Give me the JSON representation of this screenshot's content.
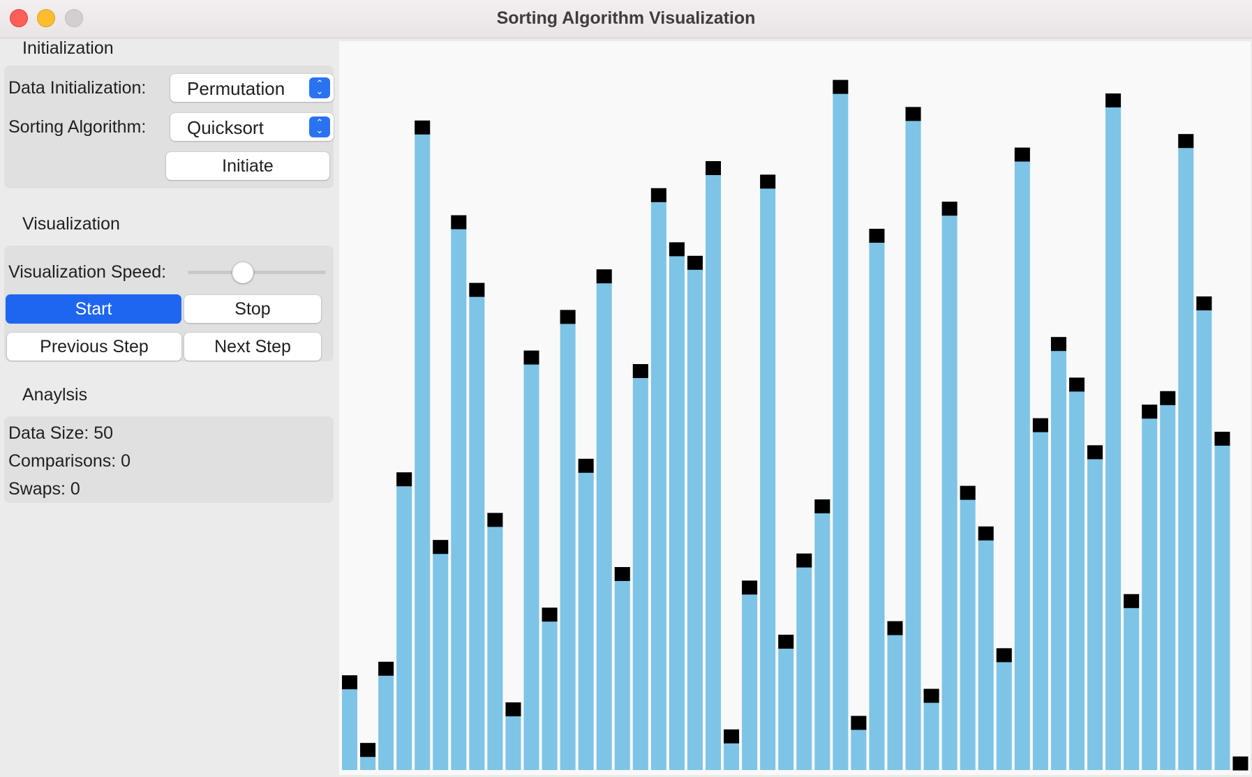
{
  "window": {
    "title": "Sorting Algorithm Visualization"
  },
  "initialization": {
    "heading": "Initialization",
    "data_init_label": "Data Initialization:",
    "data_init_value": "Permutation",
    "algorithm_label": "Sorting Algorithm:",
    "algorithm_value": "Quicksort",
    "initiate_label": "Initiate"
  },
  "visualization": {
    "heading": "Visualization",
    "speed_label": "Visualization Speed:",
    "speed_value": 0.4,
    "start_label": "Start",
    "stop_label": "Stop",
    "prev_label": "Previous Step",
    "next_label": "Next Step"
  },
  "analysis": {
    "heading": "Anaylsis",
    "data_size": "Data Size: 50",
    "comparisons": "Comparisons: 0",
    "swaps": "Swaps: 0"
  },
  "colors": {
    "bar": "#7ec4e6",
    "bar_cap": "#000000",
    "accent": "#1e66f0"
  },
  "chart_data": {
    "type": "bar",
    "values": [
      7,
      2,
      8,
      22,
      48,
      17,
      41,
      36,
      19,
      5,
      31,
      12,
      34,
      23,
      37,
      15,
      30,
      43,
      39,
      38,
      45,
      3,
      14,
      44,
      10,
      16,
      20,
      51,
      4,
      40,
      11,
      49,
      6,
      42,
      21,
      18,
      9,
      46,
      26,
      32,
      29,
      24,
      50,
      13,
      27,
      28,
      47,
      35,
      25,
      1
    ],
    "ylim": [
      0,
      51
    ]
  }
}
